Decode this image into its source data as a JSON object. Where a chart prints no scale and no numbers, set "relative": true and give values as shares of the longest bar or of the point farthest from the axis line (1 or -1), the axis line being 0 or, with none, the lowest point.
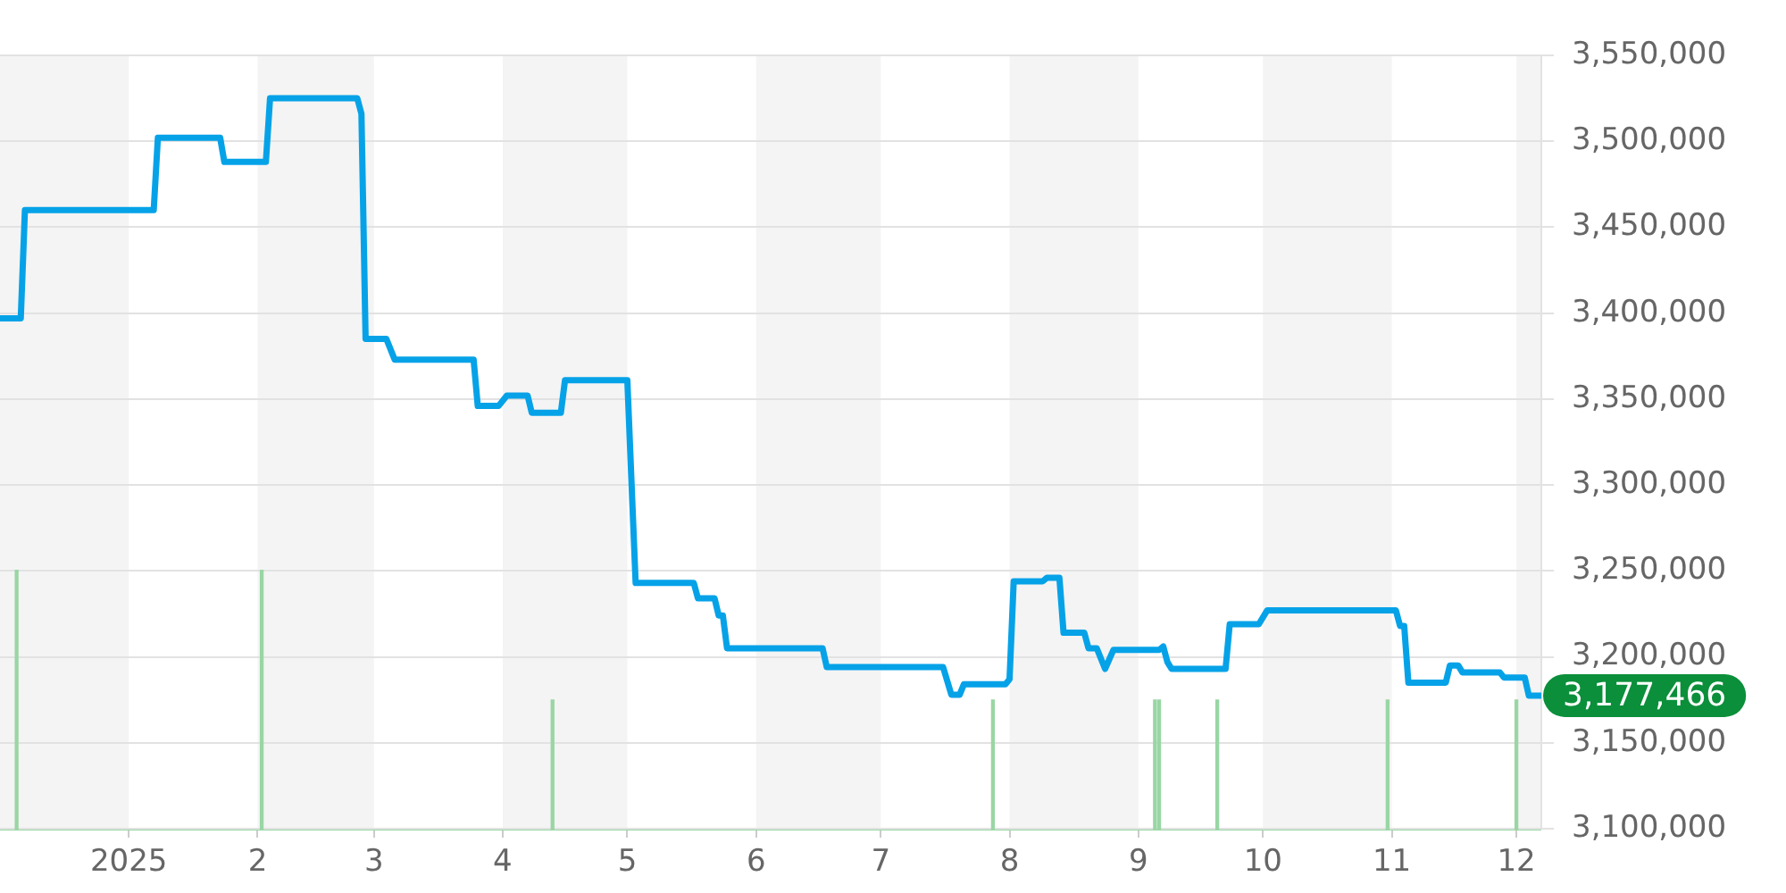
{
  "chart_data": [
    {
      "type": "line",
      "xlim": [
        "2024-12-01",
        "2025-12-07"
      ],
      "xticks": [
        {
          "value": "2025-01-01",
          "label": "2025"
        },
        {
          "value": "2025-02-01",
          "label": "2"
        },
        {
          "value": "2025-03-01",
          "label": "3"
        },
        {
          "value": "2025-04-01",
          "label": "4"
        },
        {
          "value": "2025-05-01",
          "label": "5"
        },
        {
          "value": "2025-06-01",
          "label": "6"
        },
        {
          "value": "2025-07-01",
          "label": "7"
        },
        {
          "value": "2025-08-01",
          "label": "8"
        },
        {
          "value": "2025-09-01",
          "label": "9"
        },
        {
          "value": "2025-10-01",
          "label": "10"
        },
        {
          "value": "2025-11-01",
          "label": "11"
        },
        {
          "value": "2025-12-01",
          "label": "12"
        }
      ],
      "ylim": [
        3100000,
        3550000
      ],
      "yticks": [
        {
          "value": 3100000,
          "label": "3,100,000"
        },
        {
          "value": 3150000,
          "label": "3,150,000"
        },
        {
          "value": 3200000,
          "label": "3,200,000"
        },
        {
          "value": 3250000,
          "label": "3,250,000"
        },
        {
          "value": 3300000,
          "label": "3,300,000"
        },
        {
          "value": 3350000,
          "label": "3,350,000"
        },
        {
          "value": 3400000,
          "label": "3,400,000"
        },
        {
          "value": 3450000,
          "label": "3,450,000"
        },
        {
          "value": 3500000,
          "label": "3,500,000"
        },
        {
          "value": 3550000,
          "label": "3,550,000"
        }
      ],
      "grid": "y",
      "marker": "none",
      "bands": [
        {
          "axis": "x",
          "from": "2024-12-01",
          "to": "2025-01-01",
          "color": "#f4f4f4"
        },
        {
          "axis": "x",
          "from": "2025-02-01",
          "to": "2025-03-01",
          "color": "#f4f4f4"
        },
        {
          "axis": "x",
          "from": "2025-04-01",
          "to": "2025-05-01",
          "color": "#f4f4f4"
        },
        {
          "axis": "x",
          "from": "2025-06-01",
          "to": "2025-07-01",
          "color": "#f4f4f4"
        },
        {
          "axis": "x",
          "from": "2025-08-01",
          "to": "2025-09-01",
          "color": "#f4f4f4"
        },
        {
          "axis": "x",
          "from": "2025-10-01",
          "to": "2025-11-01",
          "color": "#f4f4f4"
        },
        {
          "axis": "x",
          "from": "2025-12-01",
          "to": "2025-12-07",
          "color": "#f4f4f4"
        }
      ],
      "color": "#06a2e8",
      "x": [
        "2024-12-01",
        "2024-12-06",
        "2024-12-07",
        "2025-01-07",
        "2025-01-08",
        "2025-01-23",
        "2025-01-24",
        "2025-02-03",
        "2025-02-04",
        "2025-02-25",
        "2025-02-26",
        "2025-02-27",
        "2025-03-04",
        "2025-03-06",
        "2025-03-25",
        "2025-03-26",
        "2025-03-31",
        "2025-04-02",
        "2025-04-07",
        "2025-04-08",
        "2025-04-15",
        "2025-04-16",
        "2025-05-01",
        "2025-05-03",
        "2025-05-17",
        "2025-05-18",
        "2025-05-22",
        "2025-05-23",
        "2025-05-24",
        "2025-05-25",
        "2025-06-17",
        "2025-06-18",
        "2025-07-16",
        "2025-07-18",
        "2025-07-20",
        "2025-07-21",
        "2025-07-31",
        "2025-08-01",
        "2025-08-02",
        "2025-08-09",
        "2025-08-10",
        "2025-08-13",
        "2025-08-14",
        "2025-08-19",
        "2025-08-20",
        "2025-08-22",
        "2025-08-24",
        "2025-08-26",
        "2025-09-06",
        "2025-09-07",
        "2025-09-08",
        "2025-09-09",
        "2025-09-22",
        "2025-09-23",
        "2025-09-30",
        "2025-10-02",
        "2025-11-02",
        "2025-11-03",
        "2025-11-04",
        "2025-11-05",
        "2025-11-14",
        "2025-11-15",
        "2025-11-17",
        "2025-11-18",
        "2025-11-27",
        "2025-11-28",
        "2025-12-03",
        "2025-12-04",
        "2025-12-07"
      ],
      "values": [
        3397000,
        3397000,
        3460000,
        3460000,
        3502000,
        3502000,
        3488000,
        3488000,
        3525000,
        3525000,
        3516000,
        3385000,
        3385000,
        3373000,
        3373000,
        3346000,
        3346000,
        3352000,
        3352000,
        3342000,
        3342000,
        3361000,
        3361000,
        3243000,
        3243000,
        3234000,
        3234000,
        3224000,
        3224000,
        3205000,
        3205000,
        3194000,
        3194000,
        3178000,
        3178000,
        3184000,
        3184000,
        3187000,
        3244000,
        3244000,
        3246000,
        3246000,
        3214000,
        3214000,
        3205000,
        3205000,
        3193000,
        3204000,
        3204000,
        3206000,
        3197000,
        3193000,
        3193000,
        3219000,
        3219000,
        3227000,
        3227000,
        3218000,
        3218000,
        3185000,
        3185000,
        3195000,
        3195000,
        3191000,
        3191000,
        3188000,
        3188000,
        3177466,
        3177466
      ],
      "value_labels": [
        null,
        null,
        null,
        null,
        null,
        null,
        null,
        null,
        null,
        null,
        null,
        null,
        null,
        null,
        null,
        null,
        null,
        null,
        null,
        null,
        null,
        null,
        null,
        null,
        null,
        null,
        null,
        null,
        null,
        null,
        null,
        null,
        null,
        null,
        null,
        null,
        null,
        null,
        null,
        null,
        null,
        null,
        null,
        null,
        null,
        null,
        null,
        null,
        null,
        null,
        null,
        null,
        null,
        null,
        null,
        null,
        null,
        null,
        null,
        null,
        null,
        null,
        null,
        null,
        null,
        null,
        null,
        null,
        "3,177,466"
      ]
    },
    {
      "type": "bar",
      "relative": true,
      "tick_labels": false,
      "xlim": [
        "2024-12-01",
        "2025-12-07"
      ],
      "color": "#99d6a4",
      "x": [
        "2024-12-05",
        "2025-02-02",
        "2025-04-13",
        "2025-07-28",
        "2025-09-05",
        "2025-09-06",
        "2025-09-20",
        "2025-10-31",
        "2025-12-01"
      ],
      "values": [
        1,
        1,
        0.5,
        0.5,
        0.5,
        0.5,
        0.5,
        0.5,
        0.5
      ]
    }
  ]
}
